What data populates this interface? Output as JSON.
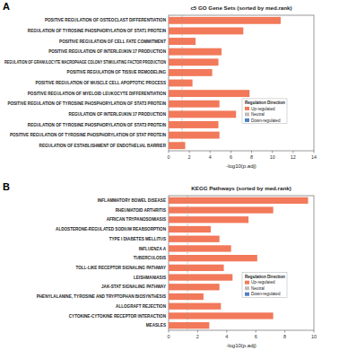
{
  "chart_data": [
    {
      "type": "bar",
      "orientation": "horizontal",
      "label": "A",
      "title": "c5 GO Gene Sets (sorted by med.rank)",
      "x_label": "-log10(p.adj)",
      "categories": [
        "POSITIVE REGULATION OF OSTEOCLAST DIFFERENTIATION",
        "REGULATION OF TYROSINE PHOSPHORYLATION OF STAT1 PROTEIN",
        "POSITIVE REGULATION OF CELL FATE COMMITMENT",
        "POSITIVE REGULATION OF INTERLEUKIN 17 PRODUCTION",
        "REGULATION OF GRANULOCYTE MACROPHAGE COLONY STIMULATING FACTOR PRODUCTION",
        "POSITIVE REGULATION OF TISSUE REMODELING",
        "POSITIVE REGULATION OF MUSCLE CELL APOPTOTIC PROCESS",
        "POSITIVE REGULATION OF MYELOID LEUKOCYTE DIFFERENTIATION",
        "POSITIVE REGULATION OF TYROSINE PHOSPHORYLATION OF STAT3 PROTEIN",
        "REGULATION OF INTERLEUKIN 17 PRODUCTION",
        "REGULATION OF TYROSINE PHOSPHORYLATION OF STAT3 PROTEIN",
        "POSITIVE REGULATION OF TYROSINE PHOSPHORYLATION OF STAT PROTEIN",
        "REGULATION OF ESTABLISHMENT OF ENDOTHELIAL BARRIER"
      ],
      "series": [
        {
          "name": "Up-regulated",
          "color": "#f2795a",
          "values": [
            10.8,
            7.2,
            2.6,
            5.1,
            4.8,
            4.2,
            2.3,
            7.8,
            4.9,
            6.5,
            4.8,
            4.9,
            1.6
          ]
        },
        {
          "name": "Neutral",
          "color": "#bdbdbd",
          "values": [
            null,
            null,
            null,
            null,
            null,
            null,
            null,
            null,
            null,
            null,
            null,
            null,
            null
          ]
        },
        {
          "name": "Down-regulated",
          "color": "#4f7fc8",
          "values": [
            null,
            null,
            null,
            null,
            null,
            null,
            null,
            null,
            null,
            null,
            null,
            null,
            null
          ]
        }
      ],
      "legend_title": "Regulation Direction",
      "legend": "right",
      "threshold": 1.3,
      "xlim": [
        0,
        14
      ],
      "xticks": [
        0,
        2,
        4,
        6,
        8,
        10,
        12,
        14
      ],
      "grid": false
    },
    {
      "type": "bar",
      "orientation": "horizontal",
      "label": "B",
      "title": "KEGG Pathways (sorted by med.rank)",
      "x_label": "-log10(p.adj)",
      "categories": [
        "INFLAMMATORY BOWEL DISEASE",
        "RHEUMATOID ARTHRITIS",
        "AFRICAN TRYPANOSOMIASIS",
        "ALDOSTERONE-REGULATED SODIUM REABSORPTION",
        "TYPE I DIABETES MELLITUS",
        "INFLUENZA A",
        "TUBERCULOSIS",
        "TOLL-LIKE RECEPTOR SIGNALING PATHWAY",
        "LEISHMANIASIS",
        "JAK-STAT SIGNALING PATHWAY",
        "PHENYLALANINE, TYROSINE AND TRYPTOPHAN BIOSYNTHESIS",
        "ALLOGRAFT REJECTION",
        "CYTOKINE-CYTOKINE RECEPTOR INTERACTION",
        "MEASLES"
      ],
      "series": [
        {
          "name": "Up-regulated",
          "color": "#f2795a",
          "values": [
            9.6,
            7.2,
            5.5,
            2.9,
            3.5,
            4.3,
            6.1,
            3.8,
            4.4,
            3.5,
            2.4,
            3.6,
            7.2,
            2.8
          ]
        },
        {
          "name": "Neutral",
          "color": "#bdbdbd",
          "values": [
            null,
            null,
            null,
            null,
            null,
            null,
            null,
            null,
            null,
            null,
            null,
            null,
            null,
            null
          ]
        },
        {
          "name": "Down-regulated",
          "color": "#4f7fc8",
          "values": [
            null,
            null,
            null,
            null,
            null,
            null,
            null,
            null,
            null,
            null,
            null,
            null,
            null,
            null
          ]
        }
      ],
      "legend_title": "Regulation Direction",
      "legend": "right",
      "threshold": 1.3,
      "xlim": [
        0,
        10
      ],
      "xticks": [
        0,
        2,
        4,
        6,
        8,
        10
      ],
      "grid": false
    }
  ]
}
